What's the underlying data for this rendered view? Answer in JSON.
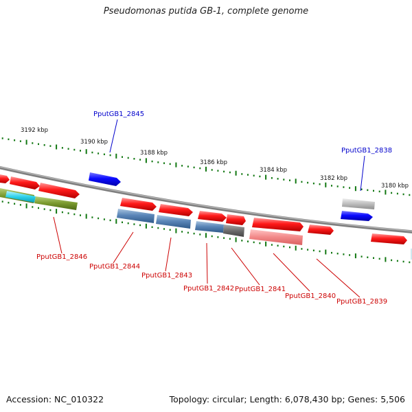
{
  "title": "Pseudomonas putida GB-1, complete genome",
  "footer": {
    "accession": "Accession: NC_010322",
    "summary": "Topology: circular; Length: 6,078,430 bp; Genes: 5,506"
  },
  "colors": {
    "forward_gene": "#ff0000",
    "reverse_gene": "#0000ff",
    "highlight_label_top": "#0000cc",
    "highlight_label_bottom": "#cc0000",
    "tick": "#117711",
    "backbone": "#888888"
  },
  "chart_data": {
    "type": "genome-map",
    "kbp_labels": [
      "3192 kbp",
      "3190 kbp",
      "3188 kbp",
      "3186 kbp",
      "3184 kbp",
      "3182 kbp",
      "3180 kbp"
    ],
    "gene_labels": [
      {
        "name": "PputGB1_2845",
        "color": "#0000cc"
      },
      {
        "name": "PputGB1_2838",
        "color": "#0000cc"
      },
      {
        "name": "PputGB1_2846",
        "color": "#cc0000"
      },
      {
        "name": "PputGB1_2844",
        "color": "#cc0000"
      },
      {
        "name": "PputGB1_2843",
        "color": "#cc0000"
      },
      {
        "name": "PputGB1_2842",
        "color": "#cc0000"
      },
      {
        "name": "PputGB1_2841",
        "color": "#cc0000"
      },
      {
        "name": "PputGB1_2840",
        "color": "#cc0000"
      },
      {
        "name": "PputGB1_2839",
        "color": "#cc0000"
      }
    ]
  }
}
